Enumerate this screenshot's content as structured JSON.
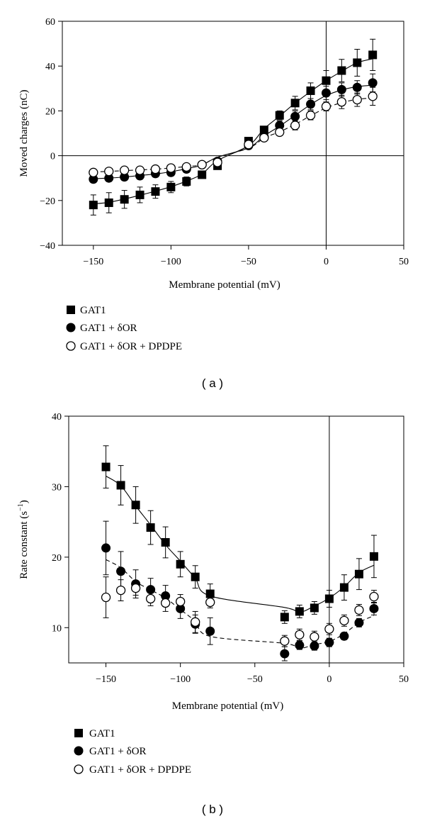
{
  "chart_data": [
    {
      "type": "scatter",
      "panel_label": "( a )",
      "xlabel": "Membrane potential (mV)",
      "ylabel": "Moved charges (nC)",
      "xlim": [
        -170,
        50
      ],
      "ylim": [
        -40,
        60
      ],
      "xticks": [
        -150,
        -100,
        -50,
        0,
        50
      ],
      "yticks": [
        -40,
        -20,
        0,
        20,
        40,
        60
      ],
      "zero_lines": true,
      "grid": false,
      "legend_position": "below-left",
      "series": [
        {
          "name": "GAT1",
          "marker": "filled-square",
          "fit": "solid",
          "x": [
            -150,
            -140,
            -130,
            -120,
            -110,
            -100,
            -90,
            -80,
            -70,
            -50,
            -40,
            -30,
            -20,
            -10,
            0,
            10,
            20,
            30
          ],
          "y": [
            -22,
            -21,
            -19.5,
            -17.5,
            -16,
            -14,
            -11.5,
            -8.5,
            -4.5,
            6.5,
            11.5,
            18,
            23.5,
            29,
            33.5,
            38,
            41.5,
            45
          ],
          "err": [
            4.5,
            4.5,
            4,
            3.5,
            3,
            2.5,
            2,
            1.5,
            1.5,
            1.5,
            1.5,
            2,
            3,
            3.5,
            4.5,
            5,
            6,
            7
          ]
        },
        {
          "name": "GAT1 + δOR",
          "marker": "filled-circle",
          "fit": "solid",
          "x": [
            -150,
            -140,
            -130,
            -120,
            -110,
            -100,
            -90,
            -80,
            -70,
            -50,
            -40,
            -30,
            -20,
            -10,
            0,
            10,
            20,
            30
          ],
          "y": [
            -10.5,
            -10,
            -9.5,
            -9,
            -8,
            -7.5,
            -6,
            -4,
            -2.5,
            4.5,
            8.5,
            13.5,
            17.5,
            23,
            28,
            29.5,
            30.5,
            32.5
          ],
          "err": [
            1.5,
            1.5,
            1.5,
            1.5,
            1.5,
            1.5,
            1.5,
            1.5,
            1.5,
            1.5,
            2,
            2,
            2.5,
            2.5,
            3,
            3,
            3,
            4
          ]
        },
        {
          "name": "GAT1 + δOR + DPDPE",
          "marker": "open-circle",
          "fit": "dashed",
          "x": [
            -150,
            -140,
            -130,
            -120,
            -110,
            -100,
            -90,
            -80,
            -70,
            -50,
            -40,
            -30,
            -20,
            -10,
            0,
            10,
            20,
            30
          ],
          "y": [
            -7.5,
            -7,
            -6.5,
            -6.5,
            -6,
            -5.5,
            -5,
            -4,
            -3,
            5,
            8,
            10.5,
            13.5,
            18,
            22,
            24,
            25,
            26.5
          ],
          "err": [
            1,
            1,
            1,
            1,
            1,
            1,
            1,
            1,
            1,
            1,
            1.5,
            1.5,
            2,
            2,
            2,
            3,
            3,
            4
          ]
        }
      ]
    },
    {
      "type": "scatter",
      "panel_label": "( b )",
      "xlabel": "Membrane potential (mV)",
      "ylabel": "Rate constant (s",
      "ylabel_sup": "−1",
      "ylabel_end": ")",
      "xlim": [
        -175,
        50
      ],
      "ylim": [
        5,
        40
      ],
      "xticks": [
        -150,
        -100,
        -50,
        0,
        50
      ],
      "yticks": [
        10,
        20,
        30,
        40
      ],
      "zero_lines": true,
      "grid": false,
      "legend_position": "below-left",
      "series": [
        {
          "name": "GAT1",
          "marker": "filled-square",
          "fit": "solid",
          "x": [
            -150,
            -140,
            -130,
            -120,
            -110,
            -100,
            -90,
            -80,
            -30,
            -20,
            -10,
            0,
            10,
            20,
            30
          ],
          "y": [
            32.8,
            30.2,
            27.4,
            24.2,
            22.1,
            19,
            17.2,
            14.8,
            11.5,
            12.3,
            12.8,
            14.1,
            15.7,
            17.6,
            20.1
          ],
          "err": [
            3,
            2.8,
            2.6,
            2.4,
            2.2,
            1.8,
            1.6,
            1.4,
            0.9,
            0.9,
            0.9,
            1.2,
            1.8,
            2.2,
            3
          ]
        },
        {
          "name": "GAT1 + δOR",
          "marker": "filled-circle",
          "fit": "dashed",
          "x": [
            -150,
            -140,
            -130,
            -120,
            -110,
            -100,
            -90,
            -80,
            -30,
            -20,
            -10,
            0,
            10,
            20,
            30
          ],
          "y": [
            21.3,
            18,
            16.2,
            15.4,
            14.5,
            12.7,
            10.5,
            9.5,
            6.3,
            7.5,
            7.4,
            7.9,
            8.8,
            10.7,
            12.7
          ],
          "err": [
            3.8,
            2.8,
            2,
            1.6,
            1.5,
            1.4,
            1.3,
            1.9,
            1,
            0.6,
            0.6,
            0.6,
            0.5,
            0.6,
            0.9
          ]
        },
        {
          "name": "GAT1 + δOR + DPDPE",
          "marker": "open-circle",
          "fit": "none",
          "x": [
            -150,
            -140,
            -130,
            -120,
            -110,
            -100,
            -90,
            -80,
            -30,
            -20,
            -10,
            0,
            10,
            20,
            30
          ],
          "y": [
            14.3,
            15.3,
            15.6,
            14.1,
            13.5,
            13.7,
            10.8,
            13.6,
            8.1,
            9,
            8.7,
            9.8,
            11,
            12.5,
            14.4
          ],
          "err": [
            2.9,
            1.5,
            1,
            1,
            1.2,
            1,
            1.5,
            0.8,
            0.8,
            0.8,
            0.8,
            0.8,
            0.8,
            0.8,
            0.9
          ]
        }
      ]
    }
  ]
}
